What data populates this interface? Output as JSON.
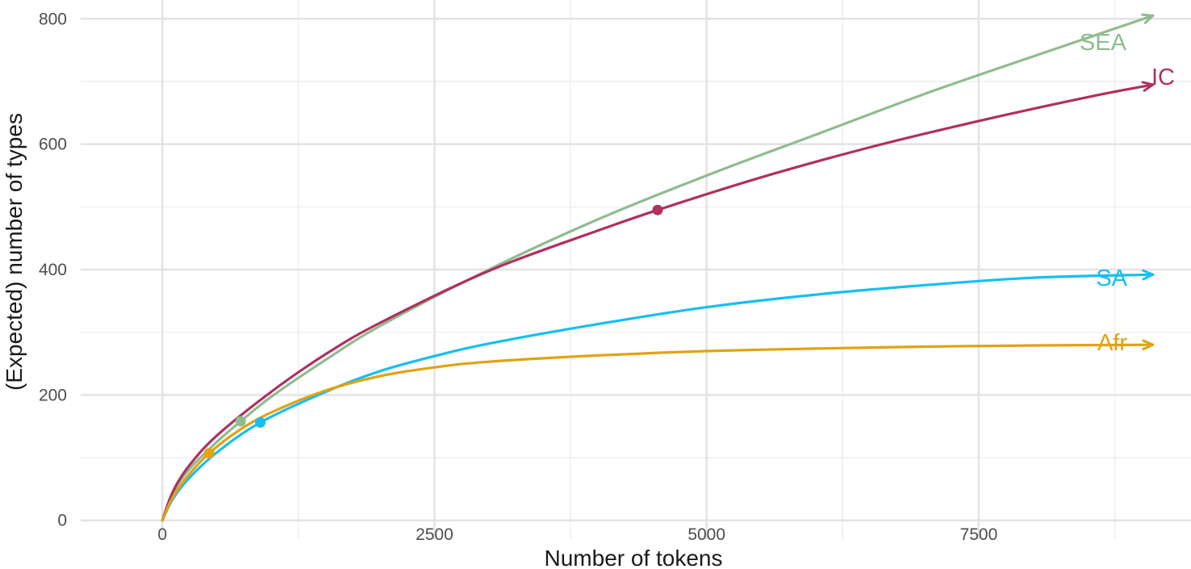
{
  "chart_data": {
    "type": "line",
    "title": "",
    "xlabel": "Number of tokens",
    "ylabel": "(Expected) number of types",
    "xlim": [
      -750,
      9450
    ],
    "ylim": [
      -30,
      830
    ],
    "x_ticks": [
      0,
      2500,
      5000,
      7500
    ],
    "x_tick_labels": [
      "0",
      "2500",
      "5000",
      "7500"
    ],
    "x_minor_ticks": [
      1250,
      3750,
      6250,
      8750
    ],
    "y_ticks": [
      0,
      200,
      400,
      600,
      800
    ],
    "y_tick_labels": [
      "0",
      "200",
      "400",
      "600",
      "800"
    ],
    "y_minor_ticks": [
      100,
      300,
      500,
      700
    ],
    "grid": true,
    "legend": "none",
    "series": [
      {
        "name": "SEA",
        "color": "#8fbc8f",
        "observed_point": [
          720,
          158
        ],
        "x": [
          0,
          100,
          250,
          500,
          720,
          1000,
          1500,
          2000,
          3000,
          4000,
          5000,
          6000,
          7000,
          8000,
          9100
        ],
        "values": [
          0,
          44,
          82,
          125,
          158,
          197,
          256,
          310,
          400,
          480,
          550,
          615,
          680,
          740,
          805
        ]
      },
      {
        "name": "IC",
        "color": "#b03060",
        "observed_point": [
          4550,
          495
        ],
        "x": [
          0,
          100,
          250,
          500,
          1000,
          1500,
          2000,
          3000,
          4000,
          4550,
          5500,
          6500,
          7500,
          8500,
          9100
        ],
        "values": [
          0,
          47,
          88,
          135,
          205,
          265,
          315,
          398,
          462,
          495,
          547,
          595,
          637,
          675,
          695
        ]
      },
      {
        "name": "SA",
        "color": "#17bef2",
        "observed_point": [
          900,
          156
        ],
        "x": [
          0,
          100,
          250,
          500,
          900,
          1500,
          2000,
          2500,
          3000,
          4000,
          5000,
          6000,
          7000,
          8000,
          9100
        ],
        "values": [
          0,
          35,
          68,
          108,
          156,
          205,
          238,
          262,
          282,
          313,
          340,
          360,
          375,
          387,
          392
        ]
      },
      {
        "name": "Afr",
        "color": "#e0a313",
        "observed_point": [
          430,
          107
        ],
        "x": [
          0,
          100,
          250,
          430,
          700,
          1000,
          1500,
          2000,
          2500,
          3000,
          4000,
          5000,
          6000,
          7000,
          8000,
          9100
        ],
        "values": [
          0,
          38,
          74,
          107,
          143,
          172,
          207,
          230,
          244,
          253,
          263,
          270,
          274,
          277,
          279,
          280
        ]
      }
    ]
  }
}
